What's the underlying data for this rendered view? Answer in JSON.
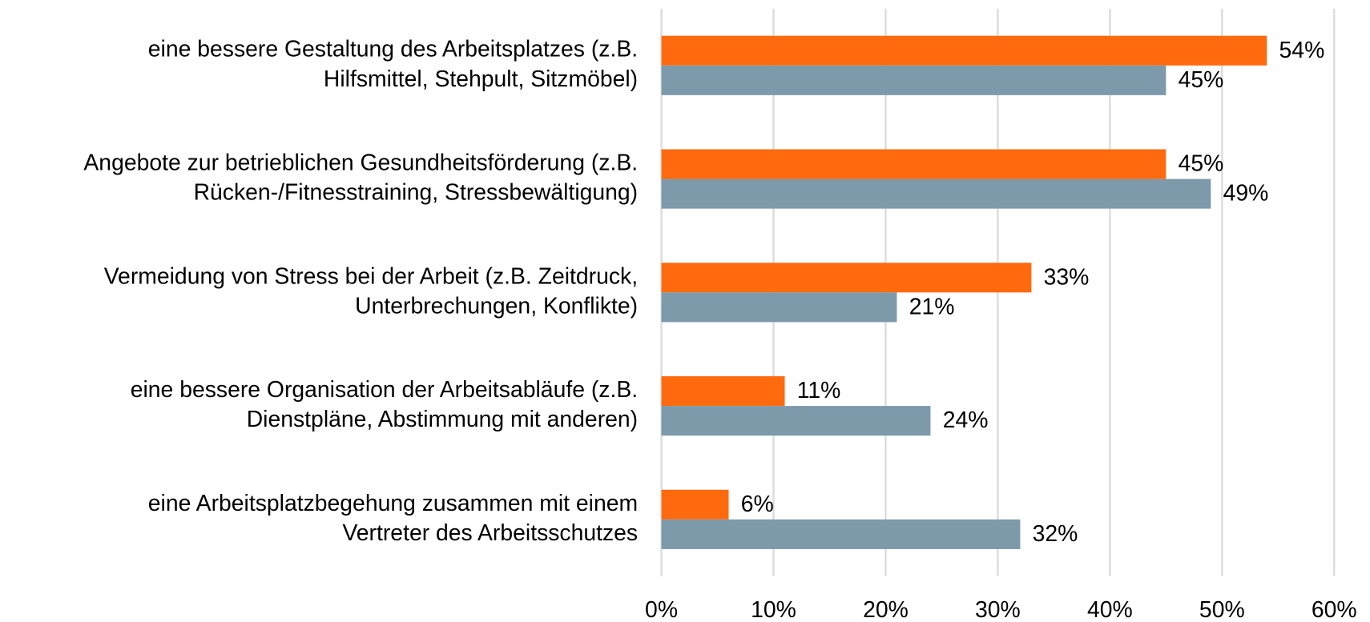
{
  "chart_data": {
    "type": "bar",
    "orientation": "horizontal",
    "categories": [
      [
        "eine bessere Gestaltung des Arbeitsplatzes (z.B.",
        "Hilfsmittel, Stehpult, Sitzmöbel)"
      ],
      [
        "Angebote zur betrieblichen Gesundheitsförderung (z.B.",
        "Rücken-/Fitnesstraining, Stressbewältigung)"
      ],
      [
        "Vermeidung von Stress bei der Arbeit (z.B. Zeitdruck,",
        "Unterbrechungen, Konflikte)"
      ],
      [
        "eine bessere Organisation der Arbeitsabläufe (z.B.",
        "Dienstpläne, Abstimmung mit anderen)"
      ],
      [
        "eine Arbeitsplatzbegehung zusammen mit einem",
        "Vertreter des Arbeitsschutzes"
      ]
    ],
    "series": [
      {
        "color": "#ff6a0e",
        "values": [
          54,
          45,
          33,
          11,
          6
        ],
        "value_labels": [
          "54%",
          "45%",
          "33%",
          "11%",
          "6%"
        ]
      },
      {
        "color": "#7d9aaa",
        "values": [
          45,
          49,
          21,
          24,
          32
        ],
        "value_labels": [
          "45%",
          "49%",
          "21%",
          "24%",
          "32%"
        ]
      }
    ],
    "xlim": [
      0,
      60
    ],
    "xticks": [
      {
        "value": 0,
        "label": "0%"
      },
      {
        "value": 10,
        "label": "10%"
      },
      {
        "value": 20,
        "label": "20%"
      },
      {
        "value": 30,
        "label": "30%"
      },
      {
        "value": 40,
        "label": "40%"
      },
      {
        "value": 50,
        "label": "50%"
      },
      {
        "value": 60,
        "label": "60%"
      }
    ],
    "grid": true
  }
}
